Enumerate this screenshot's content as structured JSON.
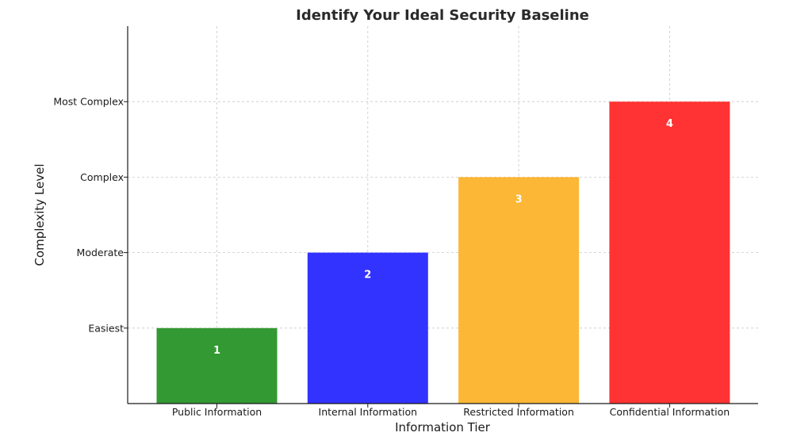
{
  "chart_data": {
    "type": "bar",
    "title": "Identify Your Ideal Security Baseline",
    "xlabel": "Information Tier",
    "ylabel": "Complexity Level",
    "categories": [
      "Public Information",
      "Internal Information",
      "Restricted Information",
      "Confidential Information"
    ],
    "values": [
      1,
      2,
      3,
      4
    ],
    "data_labels": [
      "1",
      "2",
      "3",
      "4"
    ],
    "colors": [
      "#339933",
      "#3333ff",
      "#fbb735",
      "#ff3333"
    ],
    "yticks": [
      {
        "value": 1,
        "label": "Easiest"
      },
      {
        "value": 2,
        "label": "Moderate"
      },
      {
        "value": 3,
        "label": "Complex"
      },
      {
        "value": 4,
        "label": "Most Complex"
      }
    ],
    "ylim": [
      0,
      5
    ],
    "grid": true,
    "legend": "none"
  }
}
